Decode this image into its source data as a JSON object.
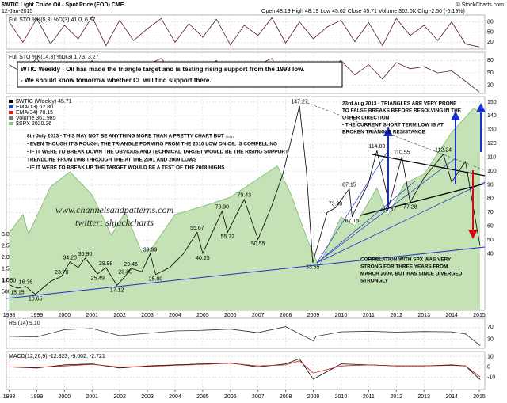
{
  "header": {
    "title": "$WTIC Light Crude Oil - Spot Price (EOD) CME",
    "date": "12-Jan-2015",
    "quote": "Open 48.19  High 48.19  Low 45.62  Close 45.71  Volume 362.0K  Chg -2.50 (-5.19%)",
    "source": "© StockCharts.com"
  },
  "chart_data": [
    {
      "type": "line",
      "label": "Full STO %K(5,3) %D(3) 41.0, 6.57",
      "xlim": [
        1997.9,
        2015.2
      ],
      "ylim": [
        0,
        100
      ],
      "yticks": [
        20,
        50,
        80
      ],
      "grid": true,
      "x": [
        1998,
        1998.5,
        1999,
        1999.5,
        2000,
        2000.5,
        2001,
        2001.5,
        2002,
        2002.5,
        2003,
        2003.5,
        2004,
        2004.5,
        2005,
        2005.5,
        2006,
        2006.5,
        2007,
        2007.5,
        2008,
        2008.5,
        2009,
        2009.5,
        2010,
        2010.5,
        2011,
        2011.5,
        2012,
        2012.5,
        2013,
        2013.5,
        2014,
        2014.5,
        2015
      ],
      "series": [
        {
          "color": "#5a1a1a",
          "values": [
            80,
            20,
            90,
            15,
            70,
            30,
            95,
            10,
            85,
            25,
            60,
            90,
            20,
            75,
            35,
            88,
            12,
            70,
            40,
            92,
            18,
            80,
            30,
            65,
            85,
            22,
            78,
            10,
            90,
            40,
            70,
            25,
            80,
            15,
            6.57
          ]
        }
      ]
    },
    {
      "type": "line",
      "label": "Full STO %K(14,3) %D(3) 1.73, 3.27",
      "xlim": [
        1997.9,
        2015.2
      ],
      "ylim": [
        0,
        100
      ],
      "yticks": [
        20,
        50,
        80
      ],
      "grid": true,
      "box_note": [
        "WTIC Weekly - Oil has made the triangle target and is testing rising support from the 1998 low.",
        "- We should know tomorrow whether CL will find support there."
      ],
      "x": [
        1998,
        1998.5,
        1999,
        1999.5,
        2000,
        2000.5,
        2001,
        2001.5,
        2002,
        2002.5,
        2003,
        2003.5,
        2004,
        2004.5,
        2005,
        2005.5,
        2006,
        2006.5,
        2007,
        2007.5,
        2008,
        2008.5,
        2009,
        2009.5,
        2010,
        2010.5,
        2011,
        2011.5,
        2012,
        2012.5,
        2013,
        2013.5,
        2014,
        2014.5,
        2015
      ],
      "series": [
        {
          "color": "#5a1a1a",
          "values": [
            70,
            50,
            85,
            40,
            60,
            55,
            80,
            35,
            75,
            60,
            70,
            85,
            45,
            65,
            55,
            80,
            40,
            60,
            70,
            85,
            20,
            65,
            50,
            60,
            80,
            45,
            70,
            35,
            75,
            60,
            65,
            50,
            55,
            30,
            3.27
          ]
        }
      ]
    },
    {
      "type": "line",
      "xlim": [
        1997.9,
        2015.2
      ],
      "ylim": [
        -1,
        154
      ],
      "yticks": [
        40,
        50,
        60,
        70,
        80,
        90,
        100,
        110,
        120,
        130,
        140,
        150
      ],
      "grid": true,
      "xticks": [
        1998,
        1999,
        2000,
        2001,
        2002,
        2003,
        2004,
        2005,
        2006,
        2007,
        2008,
        2009,
        2010,
        2011,
        2012,
        2013,
        2014,
        2015
      ],
      "y2lim": [
        -300000,
        9000000
      ],
      "y2ticks": [
        {
          "value": 500000,
          "label": "500K"
        },
        {
          "value": 1000000,
          "label": "1.0M"
        },
        {
          "value": 1500000,
          "label": "1.5M"
        },
        {
          "value": 2000000,
          "label": "2.0M"
        },
        {
          "value": 2500000,
          "label": "2.5M"
        },
        {
          "value": 3000000,
          "label": "3.0M"
        }
      ],
      "y3lim": [
        300,
        2150
      ],
      "legend": [
        {
          "label": "$WTIC (Weekly) 45.71",
          "color": "#000000"
        },
        {
          "label": "EMA(13) 62.80",
          "color": "#1f3fbf"
        },
        {
          "label": "EMA(34) 78.15",
          "color": "#d02020"
        },
        {
          "label": "Volume 361,985",
          "color": "#777777"
        },
        {
          "label": "$SPX 2020.26",
          "color": "#8cc47a"
        }
      ],
      "series": [
        {
          "axis": "y3",
          "color": "#7fb56b",
          "fill": "#c4e2b6",
          "x": [
            1998,
            1998.5,
            1998.7,
            1999.5,
            2000.2,
            2001,
            2001.7,
            2002.2,
            2002.8,
            2003.2,
            2004,
            2005,
            2006,
            2007.7,
            2008.2,
            2008.8,
            2009.2,
            2010,
            2010.5,
            2011.3,
            2011.7,
            2012.3,
            2013,
            2014,
            2014.8,
            2015.03
          ],
          "values": [
            970,
            1130,
            960,
            1370,
            1500,
            1300,
            950,
            1150,
            800,
            850,
            1130,
            1200,
            1280,
            1550,
            1300,
            900,
            680,
            1110,
            1030,
            1360,
            1120,
            1400,
            1480,
            1840,
            2050,
            2020.26
          ]
        },
        {
          "color": "#000000",
          "x": [
            1998,
            1998.3,
            1998.6,
            1998.95,
            1999.5,
            1999.9,
            2000.2,
            2000.5,
            2000.75,
            2001.2,
            2001.5,
            2001.9,
            2002.2,
            2002.4,
            2002.8,
            2003.1,
            2003.3,
            2003.8,
            2004.3,
            2004.8,
            2005,
            2005.7,
            2005.9,
            2006.5,
            2007,
            2007.5,
            2007.9,
            2008.5,
            2008.75,
            2008.98,
            2009.5,
            2009.8,
            2010.3,
            2010.4,
            2010.99,
            2011.3,
            2011.75,
            2012.2,
            2012.5,
            2013,
            2013.7,
            2014,
            2014.5,
            2014.9,
            2015.03
          ],
          "values": [
            17.5,
            15.15,
            16.36,
            10.65,
            20,
            23.7,
            34.2,
            30,
            36.9,
            25.49,
            29.98,
            17.12,
            23.8,
            29.46,
            27,
            39.99,
            25,
            30,
            40,
            55.67,
            40.25,
            70.9,
            55.72,
            79.43,
            50.55,
            75,
            98,
            147.27,
            100,
            33.55,
            70,
            73.38,
            87.15,
            67.15,
            91,
            114.83,
            75.67,
            110.55,
            77.28,
            95,
            112.24,
            92,
            107,
            60,
            45.71
          ],
          "value_labels": [
            "17.50",
            "15.15",
            "16.36",
            "10.65",
            null,
            "23.70",
            "34.20",
            null,
            "36.90",
            "25.49",
            "29.98",
            "17.12",
            "23.80",
            "29.46",
            null,
            "39.99",
            "25.00",
            null,
            null,
            "55.67",
            "40.25",
            "70.90",
            "55.72",
            "79.43",
            "50.55",
            null,
            null,
            "147.27",
            null,
            "33.55",
            null,
            "73.38",
            "87.15",
            "67.15",
            null,
            "114.83",
            "75.67",
            "110.55",
            "77.28",
            null,
            "112.24",
            null,
            null,
            null,
            null
          ]
        }
      ],
      "notes": {
        "left": [
          "8th July 2013 - THIS MAY NOT BE ANYTHING MORE THAN A PRETTY CHART BUT ......",
          "- EVEN THOUGH IT'S ROUGH, THE TRIANGLE FORMING FROM THE 2010 LOW ON OIL IS COMPELLING",
          "- IF IT WERE TO BREAK DOWN THE OBVIOUS AND TECHNICAL TARGET WOULD BE THE RISING SUPPORT",
          "TRENDLINE FROM 1998 THROUGH THE AT THE 2001 AND 2009 LOWS",
          "- IF IT WERE TO BREAK UP THE TARGET WOULD BE A TEST OF THE 2008 HIGHS"
        ],
        "right": [
          "23rd Aug 2013 - TRIANGLES ARE VERY PRONE",
          "TO FALSE BREAKS BEFORE RESOLVING IN THE",
          "OTHER DIRECTION",
          "- THE CURRENT SHORT TERM LOW IS AT",
          "BROKEN TRIANGLE RESISTANCE"
        ],
        "bottom": [
          "CORRELATION WITH SPX WAS VERY",
          "STRONG FOR THREE YEARS FROM",
          "MARCH 2009, BUT HAS SINCE DIVERGED",
          "STRONGLY"
        ],
        "watermark": [
          "www.channelsandpatterns.com",
          "twitter: shjackcharts"
        ]
      }
    },
    {
      "type": "line",
      "label": "RSI(14) 9.10",
      "xlim": [
        1997.9,
        2015.2
      ],
      "ylim": [
        0,
        100
      ],
      "yticks": [
        30,
        70
      ],
      "grid": true,
      "x": [
        1998,
        1999,
        2000,
        2001,
        2002,
        2003,
        2004,
        2005,
        2006,
        2007,
        2008,
        2009,
        2009.1,
        2010,
        2011,
        2012,
        2013,
        2014,
        2014.5,
        2015.03
      ],
      "series": [
        {
          "color": "#333333",
          "values": [
            40,
            38,
            62,
            66,
            42,
            50,
            58,
            60,
            64,
            52,
            72,
            25,
            40,
            55,
            57,
            54,
            56,
            55,
            48,
            9.1
          ]
        }
      ]
    },
    {
      "type": "line",
      "label": "MACD(12,26,9) -12.323, -9.602, -2.721",
      "xlim": [
        1997.9,
        2015.2
      ],
      "ylim": [
        -22,
        15
      ],
      "yticks": [
        -10,
        0,
        10
      ],
      "grid": true,
      "x": [
        1998,
        1999,
        2000,
        2001,
        2002,
        2003,
        2004,
        2005,
        2006,
        2007,
        2008,
        2008.5,
        2009,
        2010,
        2011,
        2012,
        2013,
        2014,
        2014.5,
        2015.03
      ],
      "series": [
        {
          "color": "#000000",
          "values": [
            0,
            -1,
            2,
            3,
            -1,
            1,
            2,
            3,
            4,
            0,
            3,
            8,
            -12,
            3,
            2,
            1,
            1,
            2,
            1,
            -12.323
          ]
        },
        {
          "color": "#d02020",
          "values": [
            0,
            -0.5,
            1,
            2.5,
            0,
            0.5,
            1.5,
            2.5,
            3.5,
            1,
            2,
            6,
            -6,
            1,
            2,
            1,
            1,
            1.5,
            1,
            -9.602
          ]
        }
      ]
    }
  ]
}
